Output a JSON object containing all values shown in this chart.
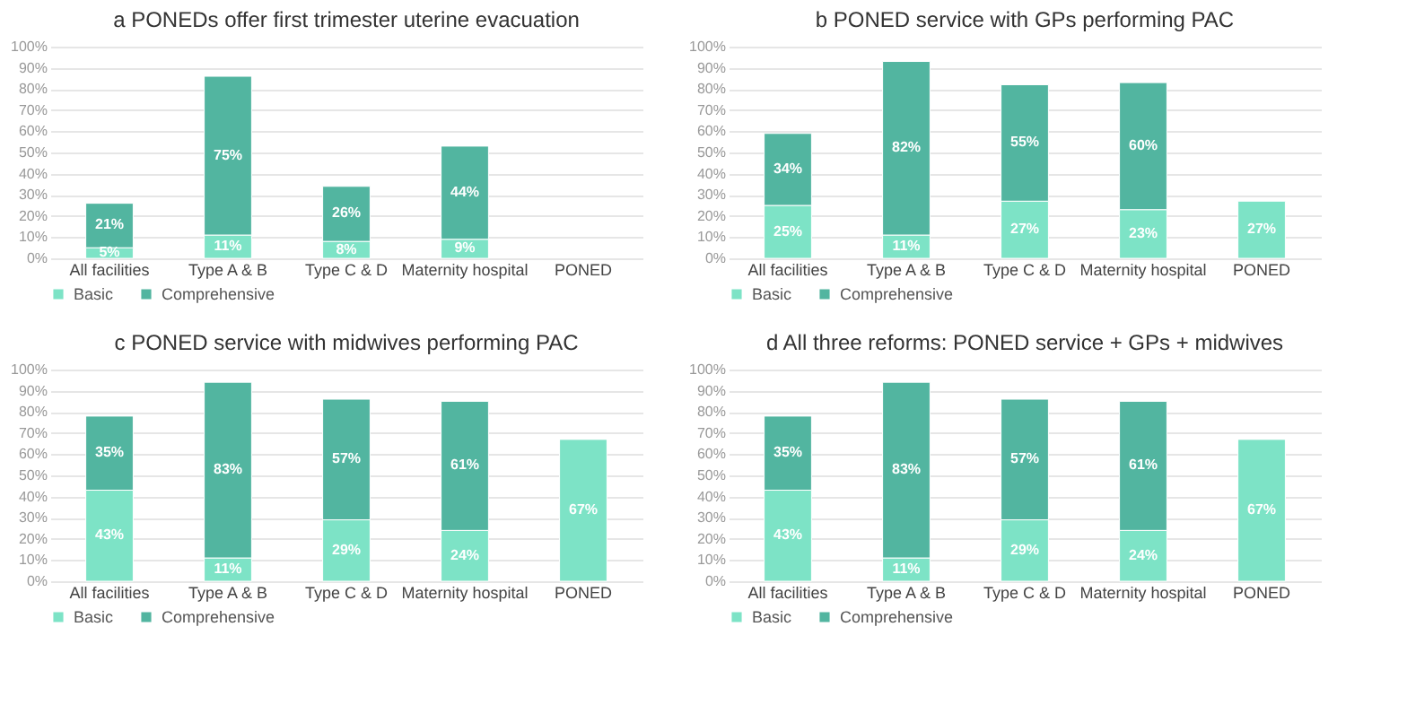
{
  "chart_data": [
    {
      "type": "bar",
      "title": "a PONEDs offer first trimester uterine evacuation",
      "categories": [
        "All facilities",
        "Type A & B",
        "Type C & D",
        "Maternity hospital",
        "PONED"
      ],
      "stacked": true,
      "ylim": [
        0,
        100
      ],
      "yticks": [
        {
          "value": 0,
          "label": "0%"
        },
        {
          "value": 10,
          "label": "10%"
        },
        {
          "value": 20,
          "label": "20%"
        },
        {
          "value": 30,
          "label": "30%"
        },
        {
          "value": 40,
          "label": "40%"
        },
        {
          "value": 50,
          "label": "50%"
        },
        {
          "value": 60,
          "label": "60%"
        },
        {
          "value": 70,
          "label": "70%"
        },
        {
          "value": 80,
          "label": "80%"
        },
        {
          "value": 90,
          "label": "90%"
        },
        {
          "value": 100,
          "label": "100%"
        }
      ],
      "grid": "y",
      "legend": "bottom",
      "series": [
        {
          "name": "Basic",
          "color": "#7de3c6",
          "values": [
            5,
            11,
            8,
            9,
            null
          ],
          "value_labels": [
            "5%",
            "11%",
            "8%",
            "9%",
            null
          ]
        },
        {
          "name": "Comprehensive",
          "color": "#52b5a0",
          "values": [
            21,
            75,
            26,
            44,
            null
          ],
          "value_labels": [
            "21%",
            "75%",
            "26%",
            "44%",
            null
          ]
        }
      ]
    },
    {
      "type": "bar",
      "title": "b PONED service with GPs performing PAC",
      "categories": [
        "All facilities",
        "Type A & B",
        "Type C & D",
        "Maternity hospital",
        "PONED"
      ],
      "stacked": true,
      "ylim": [
        0,
        100
      ],
      "yticks": [
        {
          "value": 0,
          "label": "0%"
        },
        {
          "value": 10,
          "label": "10%"
        },
        {
          "value": 20,
          "label": "20%"
        },
        {
          "value": 30,
          "label": "30%"
        },
        {
          "value": 40,
          "label": "40%"
        },
        {
          "value": 50,
          "label": "50%"
        },
        {
          "value": 60,
          "label": "60%"
        },
        {
          "value": 70,
          "label": "70%"
        },
        {
          "value": 80,
          "label": "80%"
        },
        {
          "value": 90,
          "label": "90%"
        },
        {
          "value": 100,
          "label": "100%"
        }
      ],
      "grid": "y",
      "legend": "bottom",
      "series": [
        {
          "name": "Basic",
          "color": "#7de3c6",
          "values": [
            25,
            11,
            27,
            23,
            27
          ],
          "value_labels": [
            "25%",
            "11%",
            "27%",
            "23%",
            "27%"
          ]
        },
        {
          "name": "Comprehensive",
          "color": "#52b5a0",
          "values": [
            34,
            82,
            55,
            60,
            null
          ],
          "value_labels": [
            "34%",
            "82%",
            "55%",
            "60%",
            null
          ]
        }
      ]
    },
    {
      "type": "bar",
      "title": "c PONED service with midwives performing PAC",
      "categories": [
        "All facilities",
        "Type A & B",
        "Type C & D",
        "Maternity hospital",
        "PONED"
      ],
      "stacked": true,
      "ylim": [
        0,
        100
      ],
      "yticks": [
        {
          "value": 0,
          "label": "0%"
        },
        {
          "value": 10,
          "label": "10%"
        },
        {
          "value": 20,
          "label": "20%"
        },
        {
          "value": 30,
          "label": "30%"
        },
        {
          "value": 40,
          "label": "40%"
        },
        {
          "value": 50,
          "label": "50%"
        },
        {
          "value": 60,
          "label": "60%"
        },
        {
          "value": 70,
          "label": "70%"
        },
        {
          "value": 80,
          "label": "80%"
        },
        {
          "value": 90,
          "label": "90%"
        },
        {
          "value": 100,
          "label": "100%"
        }
      ],
      "grid": "y",
      "legend": "bottom",
      "series": [
        {
          "name": "Basic",
          "color": "#7de3c6",
          "values": [
            43,
            11,
            29,
            24,
            67
          ],
          "value_labels": [
            "43%",
            "11%",
            "29%",
            "24%",
            "67%"
          ]
        },
        {
          "name": "Comprehensive",
          "color": "#52b5a0",
          "values": [
            35,
            83,
            57,
            61,
            null
          ],
          "value_labels": [
            "35%",
            "83%",
            "57%",
            "61%",
            null
          ]
        }
      ]
    },
    {
      "type": "bar",
      "title": "d All three reforms: PONED service + GPs + midwives",
      "categories": [
        "All facilities",
        "Type A & B",
        "Type C & D",
        "Maternity hospital",
        "PONED"
      ],
      "stacked": true,
      "ylim": [
        0,
        100
      ],
      "yticks": [
        {
          "value": 0,
          "label": "0%"
        },
        {
          "value": 10,
          "label": "10%"
        },
        {
          "value": 20,
          "label": "20%"
        },
        {
          "value": 30,
          "label": "30%"
        },
        {
          "value": 40,
          "label": "40%"
        },
        {
          "value": 50,
          "label": "50%"
        },
        {
          "value": 60,
          "label": "60%"
        },
        {
          "value": 70,
          "label": "70%"
        },
        {
          "value": 80,
          "label": "80%"
        },
        {
          "value": 90,
          "label": "90%"
        },
        {
          "value": 100,
          "label": "100%"
        }
      ],
      "grid": "y",
      "legend": "bottom",
      "series": [
        {
          "name": "Basic",
          "color": "#7de3c6",
          "values": [
            43,
            11,
            29,
            24,
            67
          ],
          "value_labels": [
            "43%",
            "11%",
            "29%",
            "24%",
            "67%"
          ]
        },
        {
          "name": "Comprehensive",
          "color": "#52b5a0",
          "values": [
            35,
            83,
            57,
            61,
            null
          ],
          "value_labels": [
            "35%",
            "83%",
            "57%",
            "61%",
            null
          ]
        }
      ]
    }
  ]
}
